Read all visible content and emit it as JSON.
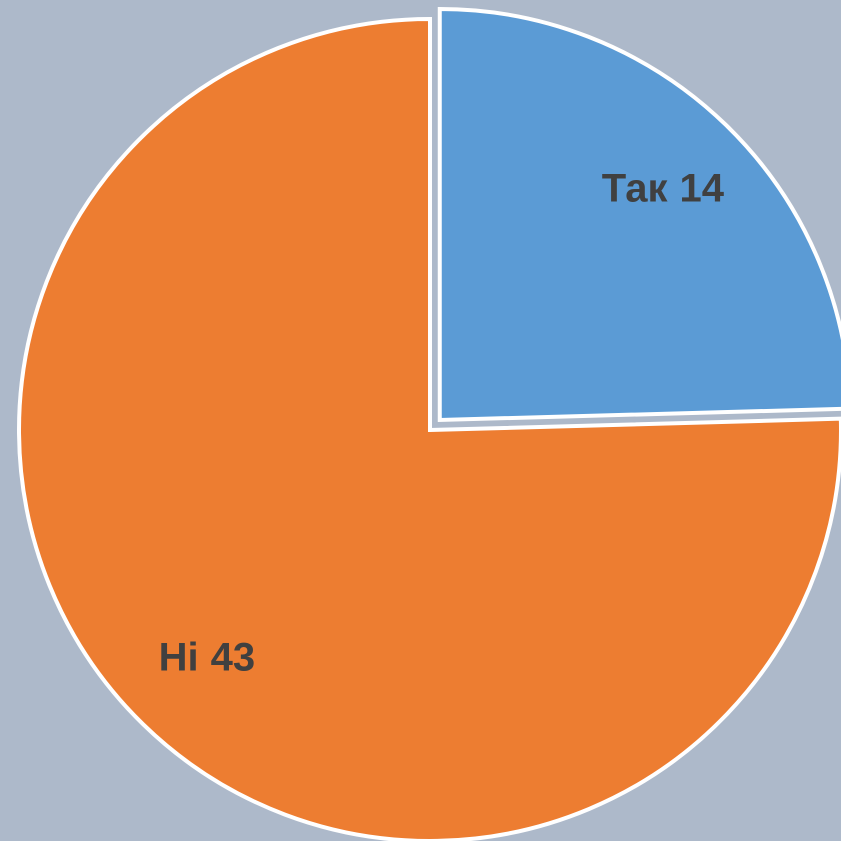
{
  "chart_data": {
    "type": "pie",
    "categories": [
      "Так",
      "Ні"
    ],
    "values": [
      14,
      43
    ],
    "colors": [
      "#5b9bd5",
      "#ed7d31"
    ],
    "exploded": [
      true,
      false
    ]
  }
}
